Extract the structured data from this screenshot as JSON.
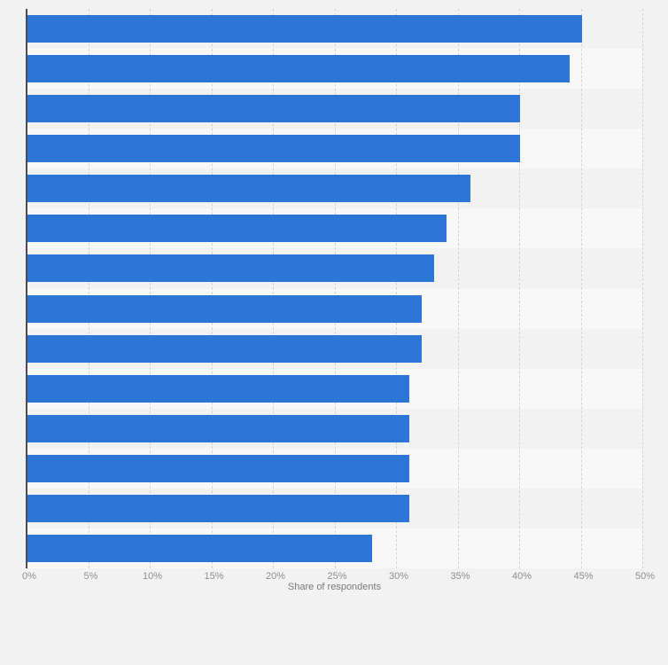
{
  "page": {
    "background_color": "#f2f2f2"
  },
  "chart_data": {
    "type": "bar",
    "orientation": "horizontal",
    "title": "",
    "xlabel": "Share of respondents",
    "ylabel": "",
    "xlim": [
      0,
      50
    ],
    "x_tick_labels": [
      "0%",
      "5%",
      "10%",
      "15%",
      "20%",
      "25%",
      "30%",
      "35%",
      "40%",
      "45%",
      "50%"
    ],
    "x_tick_step_percent": 5,
    "grid": "vertical-dashed",
    "legend_position": "none",
    "categories": [
      "",
      "",
      "",
      "",
      "",
      "",
      "",
      "",
      "",
      "",
      "",
      "",
      "",
      ""
    ],
    "series": [
      {
        "name": "Share of respondents",
        "values": [
          45,
          44,
          40,
          40,
          36,
          34,
          33,
          32,
          32,
          31,
          31,
          31,
          31,
          28
        ]
      }
    ],
    "colors": {
      "bar": "#2d76d8",
      "row_band_odd": "#f2f2f2",
      "row_band_even": "#f8f8f8",
      "gridline": "#d4d4d4",
      "axis_line": "#4d4d4d",
      "tick_label": "#8f8f8f",
      "axis_title": "#7a7a7a"
    }
  }
}
